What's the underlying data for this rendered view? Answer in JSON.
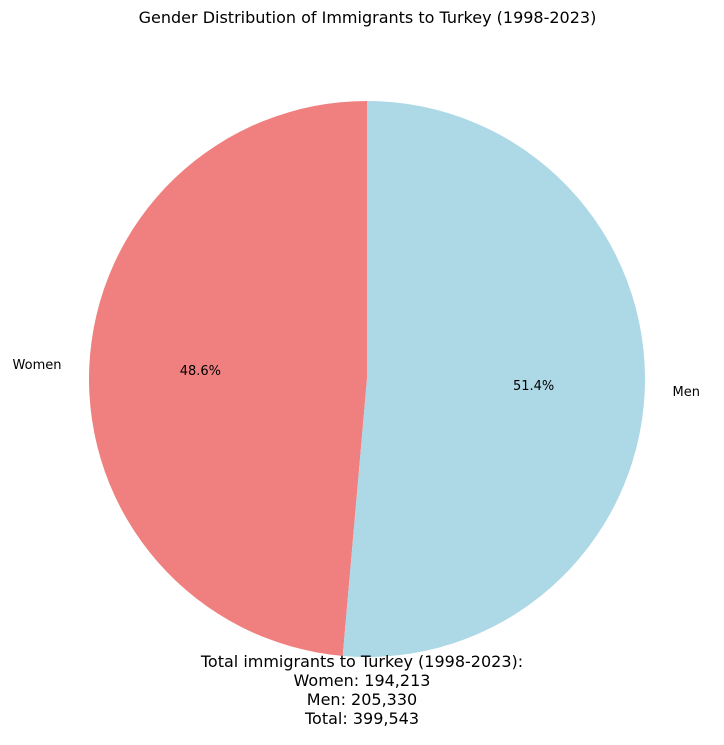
{
  "chart_data": {
    "type": "pie",
    "title": "Gender Distribution of Immigrants to Turkey (1998-2023)",
    "start_angle_deg": 90,
    "direction": "counterclockwise",
    "slices": [
      {
        "label": "Women",
        "value": 194213,
        "percent_label": "48.6%",
        "color": "#f08080"
      },
      {
        "label": "Men",
        "value": 205330,
        "percent_label": "51.4%",
        "color": "#add8e6"
      }
    ]
  },
  "summary": {
    "heading": "Total immigrants to Turkey (1998-2023):",
    "women_line": "Women: 194,213",
    "men_line": "Men: 205,330",
    "total_line": "Total: 399,543"
  }
}
